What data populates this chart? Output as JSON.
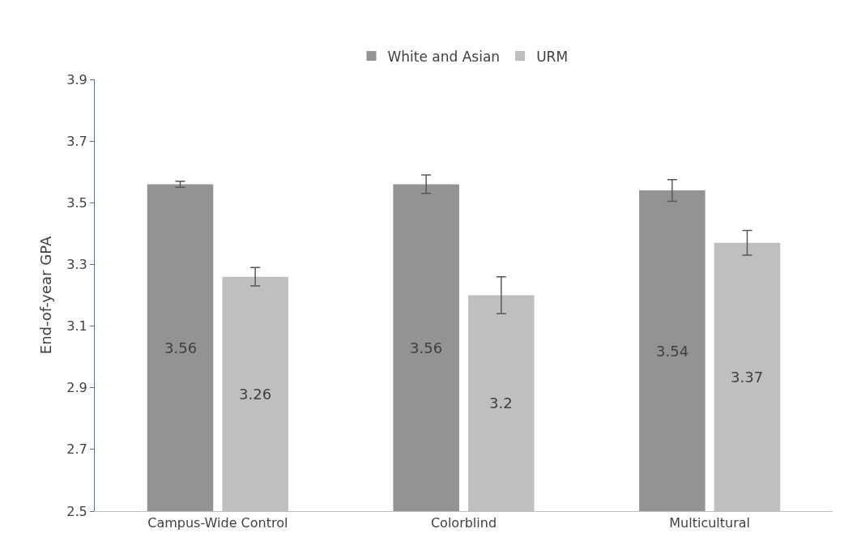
{
  "chart_data": {
    "type": "bar",
    "ylabel": "End-of-year GPA",
    "categories": [
      "Campus-Wide Control",
      "Colorblind",
      "Multicultural"
    ],
    "series": [
      {
        "name": "White and Asian",
        "color": "#939393",
        "values": [
          3.56,
          3.56,
          3.54
        ],
        "errors": [
          0.01,
          0.03,
          0.035
        ]
      },
      {
        "name": "URM",
        "color": "#bfbfbf",
        "values": [
          3.26,
          3.2,
          3.37
        ],
        "errors": [
          0.03,
          0.06,
          0.04
        ]
      }
    ],
    "ylim": [
      2.5,
      3.9
    ],
    "yticks": [
      2.5,
      2.7,
      2.9,
      3.1,
      3.3,
      3.5,
      3.7,
      3.9
    ],
    "grid": false,
    "legend": "top",
    "data_labels": true
  }
}
